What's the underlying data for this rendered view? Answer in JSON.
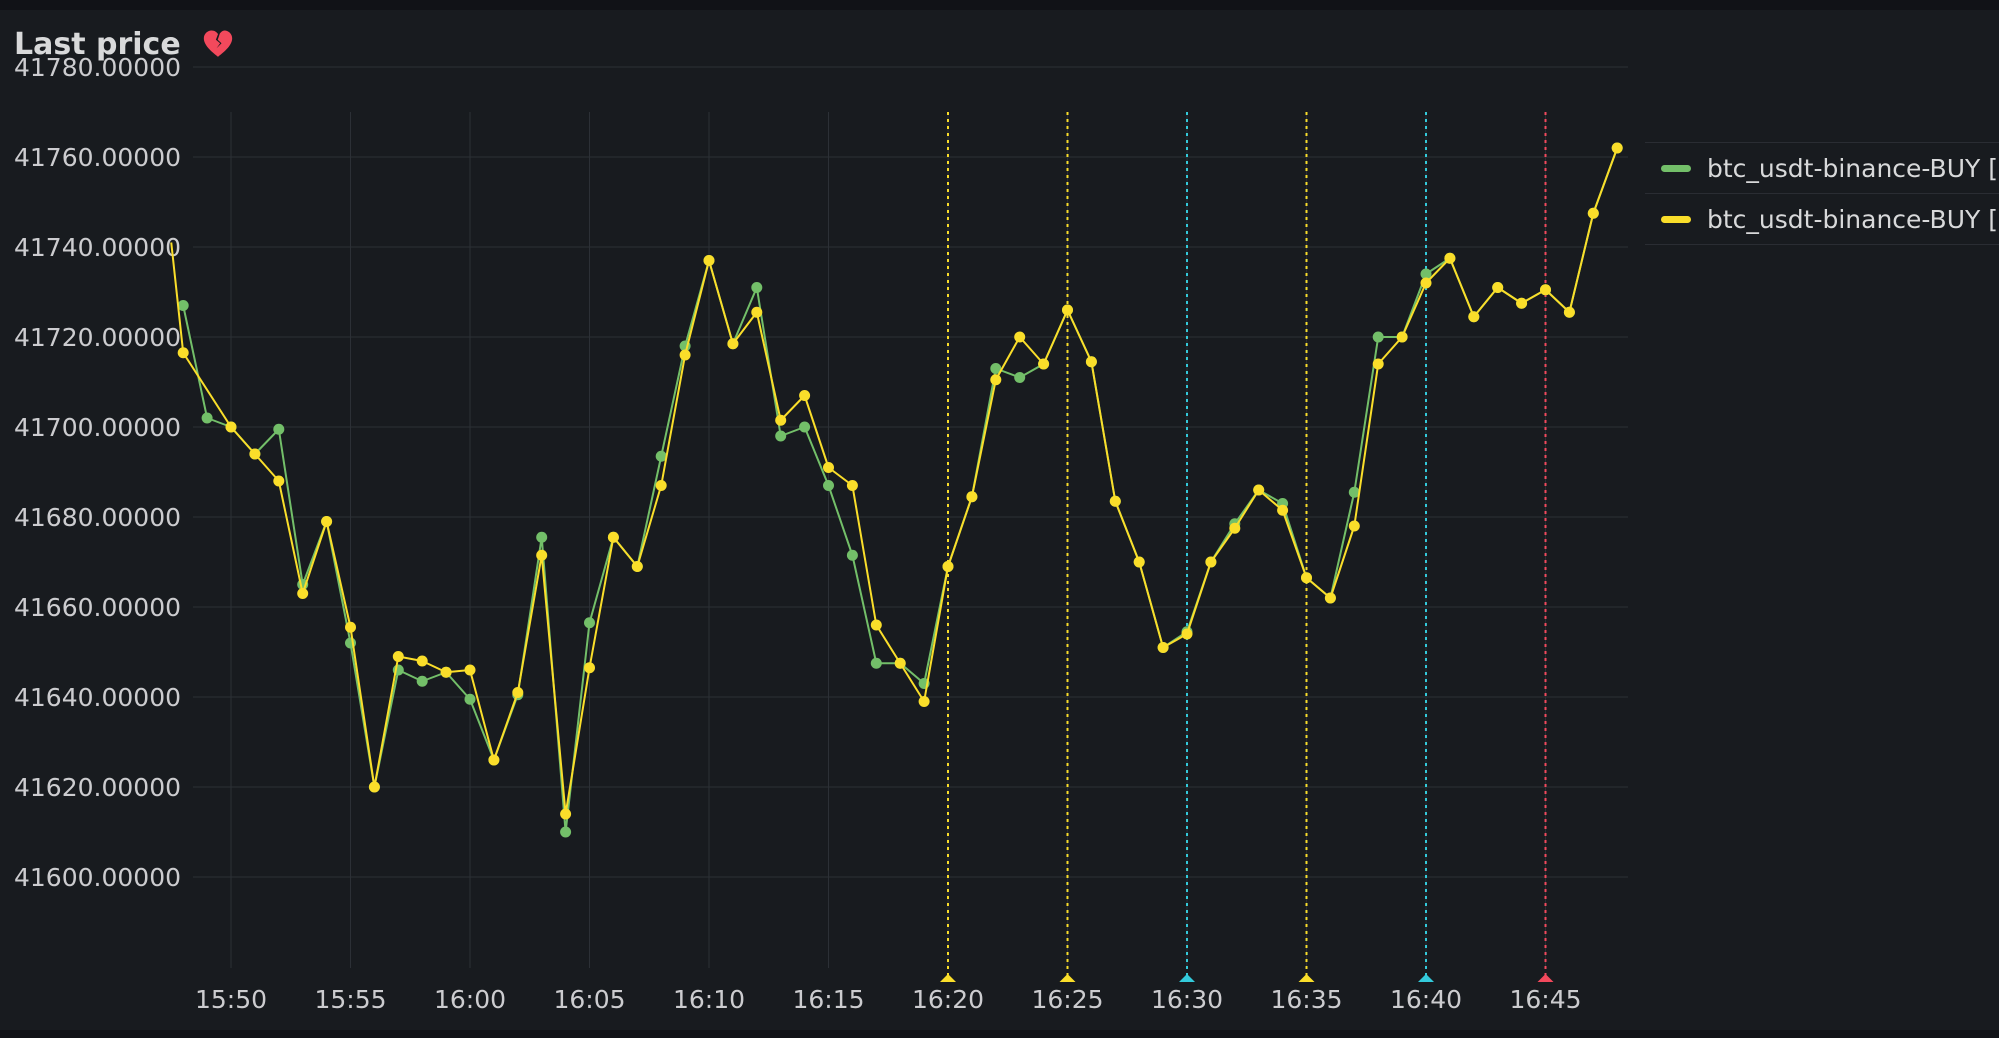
{
  "panel": {
    "title": "Last price",
    "status_icon": "broken-heart-icon"
  },
  "colors": {
    "background": "#181b1f",
    "grid": "#2c3036",
    "text": "#cccccf",
    "series_green": "#73bf69",
    "series_yellow": "#fade2a",
    "annotation_yellow": "#fade2a",
    "annotation_cyan": "#33cadb",
    "annotation_red": "#f2495c",
    "status_icon": "#f2495c"
  },
  "legend": {
    "items": [
      {
        "label": "btc_usdt-binance-BUY [",
        "color": "#73bf69"
      },
      {
        "label": "btc_usdt-binance-BUY [",
        "color": "#fade2a"
      }
    ]
  },
  "chart_data": {
    "type": "line",
    "x_unit": "time HH:MM",
    "x_range": [
      "15:47",
      "16:48"
    ],
    "x_ticks": [
      "15:50",
      "15:55",
      "16:00",
      "16:05",
      "16:10",
      "16:15",
      "16:20",
      "16:25",
      "16:30",
      "16:35",
      "16:40",
      "16:45"
    ],
    "ylim": [
      41590,
      41780
    ],
    "y_ticks": [
      41600,
      41620,
      41640,
      41660,
      41680,
      41700,
      41720,
      41740,
      41760,
      41780
    ],
    "y_tick_labels": [
      "41600.00000",
      "41620.00000",
      "41640.00000",
      "41660.00000",
      "41680.00000",
      "41700.00000",
      "41720.00000",
      "41740.00000",
      "41760.00000",
      "41780.00000"
    ],
    "grid": true,
    "legend_position": "right",
    "series": [
      {
        "name": "btc_usdt-binance-BUY [",
        "color": "#73bf69",
        "points": [
          [
            "15:48",
            41727
          ],
          [
            "15:49",
            41702
          ],
          [
            "15:50",
            41700
          ],
          [
            "15:51",
            41694
          ],
          [
            "15:52",
            41699.5
          ],
          [
            "15:53",
            41665
          ],
          [
            "15:54",
            41679
          ],
          [
            "15:55",
            41652
          ],
          [
            "15:56",
            41620
          ],
          [
            "15:57",
            41646
          ],
          [
            "15:58",
            41643.5
          ],
          [
            "15:59",
            41645.5
          ],
          [
            "16:00",
            41639.5
          ],
          [
            "16:01",
            41626
          ],
          [
            "16:02",
            41640.5
          ],
          [
            "16:03",
            41675.5
          ],
          [
            "16:04",
            41610
          ],
          [
            "16:05",
            41656.5
          ],
          [
            "16:06",
            41675.5
          ],
          [
            "16:07",
            41669
          ],
          [
            "16:08",
            41693.5
          ],
          [
            "16:09",
            41718
          ],
          [
            "16:10",
            41737
          ],
          [
            "16:11",
            41718.5
          ],
          [
            "16:12",
            41731
          ],
          [
            "16:13",
            41698
          ],
          [
            "16:14",
            41700
          ],
          [
            "16:15",
            41687
          ],
          [
            "16:16",
            41671.5
          ],
          [
            "16:17",
            41647.5
          ],
          [
            "16:18",
            41647.5
          ],
          [
            "16:19",
            41643
          ],
          [
            "16:20",
            41669
          ],
          [
            "16:21",
            41684.5
          ],
          [
            "16:22",
            41713
          ],
          [
            "16:23",
            41711
          ],
          [
            "16:24",
            41714
          ],
          [
            "16:25",
            41726
          ],
          [
            "16:26",
            41714.5
          ],
          [
            "16:27",
            41683.5
          ],
          [
            "16:28",
            41670
          ],
          [
            "16:29",
            41651
          ],
          [
            "16:30",
            41654.5
          ],
          [
            "16:31",
            41670
          ],
          [
            "16:32",
            41678.5
          ],
          [
            "16:33",
            41686
          ],
          [
            "16:34",
            41683
          ],
          [
            "16:35",
            41666.5
          ],
          [
            "16:36",
            41662
          ],
          [
            "16:37",
            41685.5
          ],
          [
            "16:38",
            41720
          ],
          [
            "16:39",
            41720
          ],
          [
            "16:40",
            41734
          ],
          [
            "16:41",
            41737.5
          ],
          [
            "16:42",
            41724.5
          ],
          [
            "16:43",
            41731
          ],
          [
            "16:44",
            41727.5
          ],
          [
            "16:45",
            41730.5
          ],
          [
            "16:46",
            41725.5
          ],
          [
            "16:47",
            41747.5
          ],
          [
            "16:48",
            41762
          ]
        ]
      },
      {
        "name": "btc_usdt-binance-BUY [",
        "color": "#fade2a",
        "points": [
          [
            "15:47.5",
            41741
          ],
          [
            "15:48",
            41716.5
          ],
          [
            "15:50",
            41700
          ],
          [
            "15:51",
            41694
          ],
          [
            "15:52",
            41688
          ],
          [
            "15:53",
            41663
          ],
          [
            "15:54",
            41679
          ],
          [
            "15:55",
            41655.5
          ],
          [
            "15:56",
            41620
          ],
          [
            "15:57",
            41649
          ],
          [
            "15:58",
            41648
          ],
          [
            "15:59",
            41645.5
          ],
          [
            "16:00",
            41646
          ],
          [
            "16:01",
            41626
          ],
          [
            "16:02",
            41641
          ],
          [
            "16:03",
            41671.5
          ],
          [
            "16:04",
            41614
          ],
          [
            "16:05",
            41646.5
          ],
          [
            "16:06",
            41675.5
          ],
          [
            "16:07",
            41669
          ],
          [
            "16:08",
            41687
          ],
          [
            "16:09",
            41716
          ],
          [
            "16:10",
            41737
          ],
          [
            "16:11",
            41718.5
          ],
          [
            "16:12",
            41725.5
          ],
          [
            "16:13",
            41701.5
          ],
          [
            "16:14",
            41707
          ],
          [
            "16:15",
            41691
          ],
          [
            "16:16",
            41687
          ],
          [
            "16:17",
            41656
          ],
          [
            "16:18",
            41647.5
          ],
          [
            "16:19",
            41639
          ],
          [
            "16:20",
            41669
          ],
          [
            "16:21",
            41684.5
          ],
          [
            "16:22",
            41710.5
          ],
          [
            "16:23",
            41720
          ],
          [
            "16:24",
            41714
          ],
          [
            "16:25",
            41726
          ],
          [
            "16:26",
            41714.5
          ],
          [
            "16:27",
            41683.5
          ],
          [
            "16:28",
            41670
          ],
          [
            "16:29",
            41651
          ],
          [
            "16:30",
            41654
          ],
          [
            "16:31",
            41670
          ],
          [
            "16:32",
            41677.5
          ],
          [
            "16:33",
            41686
          ],
          [
            "16:34",
            41681.5
          ],
          [
            "16:35",
            41666.5
          ],
          [
            "16:36",
            41662
          ],
          [
            "16:37",
            41678
          ],
          [
            "16:38",
            41714
          ],
          [
            "16:39",
            41720
          ],
          [
            "16:40",
            41732
          ],
          [
            "16:41",
            41737.5
          ],
          [
            "16:42",
            41724.5
          ],
          [
            "16:43",
            41731
          ],
          [
            "16:44",
            41727.5
          ],
          [
            "16:45",
            41730.5
          ],
          [
            "16:46",
            41725.5
          ],
          [
            "16:47",
            41747.5
          ],
          [
            "16:48",
            41762
          ]
        ]
      }
    ],
    "annotations": [
      {
        "time": "16:20",
        "color": "#fade2a"
      },
      {
        "time": "16:25",
        "color": "#fade2a"
      },
      {
        "time": "16:30",
        "color": "#33cadb"
      },
      {
        "time": "16:35",
        "color": "#fade2a"
      },
      {
        "time": "16:40",
        "color": "#33cadb"
      },
      {
        "time": "16:45",
        "color": "#f2495c"
      }
    ]
  }
}
